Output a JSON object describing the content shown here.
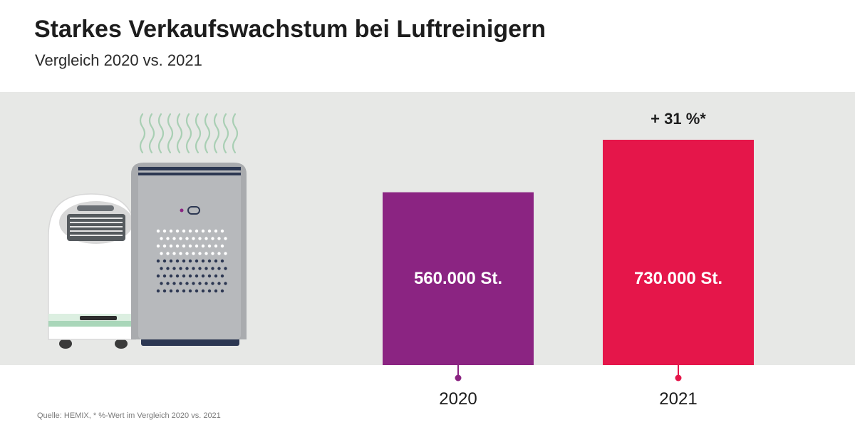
{
  "header": {
    "title": "Starkes Verkaufswachstum bei Luftreinigern",
    "subtitle": "Vergleich 2020 vs. 2021"
  },
  "footer": {
    "source": "Quelle: HEMIX, * %-Wert im Vergleich 2020 vs. 2021"
  },
  "colors": {
    "background_band": "#e7e8e6",
    "bar_2020": "#8b2482",
    "bar_2021": "#e5164a"
  },
  "illustration": {
    "icons": [
      "air-conditioner-icon",
      "air-purifier-icon",
      "airflow-waves-icon"
    ]
  },
  "chart_data": {
    "type": "bar",
    "categories": [
      "2020",
      "2021"
    ],
    "values": [
      560000,
      730000
    ],
    "data_labels": [
      "560.000 St.",
      "730.000 St."
    ],
    "annotation": "+ 31 %*",
    "title": "Starkes Verkaufswachstum bei Luftreinigern",
    "subtitle": "Vergleich 2020 vs. 2021",
    "xlabel": "",
    "ylabel": "",
    "grid": false,
    "legend": "none"
  }
}
